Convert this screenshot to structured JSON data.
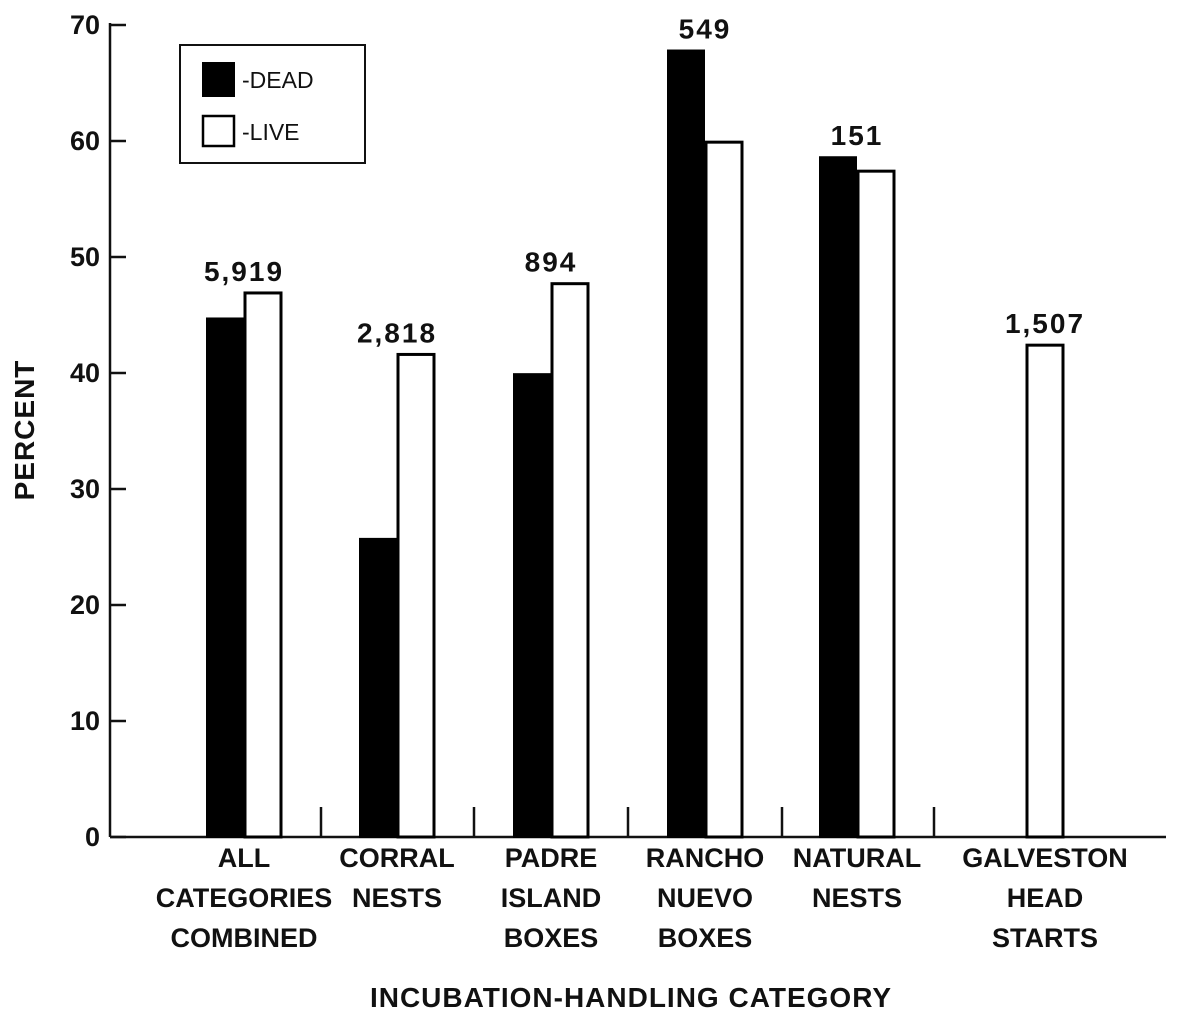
{
  "chart_data": {
    "type": "bar",
    "title": "",
    "xlabel": "INCUBATION-HANDLING CATEGORY",
    "ylabel": "PERCENT",
    "ylim": [
      0,
      70
    ],
    "yticks": [
      0,
      10,
      20,
      30,
      40,
      50,
      60,
      70
    ],
    "grid": false,
    "legend_position": "top-left",
    "categories": [
      [
        "ALL",
        "CATEGORIES",
        "COMBINED"
      ],
      [
        "CORRAL",
        "NESTS"
      ],
      [
        "PADRE",
        "ISLAND",
        "BOXES"
      ],
      [
        "RANCHO",
        "NUEVO",
        "BOXES"
      ],
      [
        "NATURAL",
        "NESTS"
      ],
      [
        "GALVESTON",
        "HEAD",
        "STARTS"
      ]
    ],
    "series": [
      {
        "name": "-DEAD",
        "color": "#000000",
        "values": [
          44.7,
          25.7,
          39.9,
          67.8,
          58.6,
          null
        ]
      },
      {
        "name": "-LIVE",
        "color": "#ffffff",
        "values": [
          46.9,
          41.6,
          47.7,
          59.9,
          57.4,
          42.4
        ]
      }
    ],
    "annotations": [
      "5,919",
      "2,818",
      "894",
      "549",
      "151",
      "1,507"
    ]
  }
}
